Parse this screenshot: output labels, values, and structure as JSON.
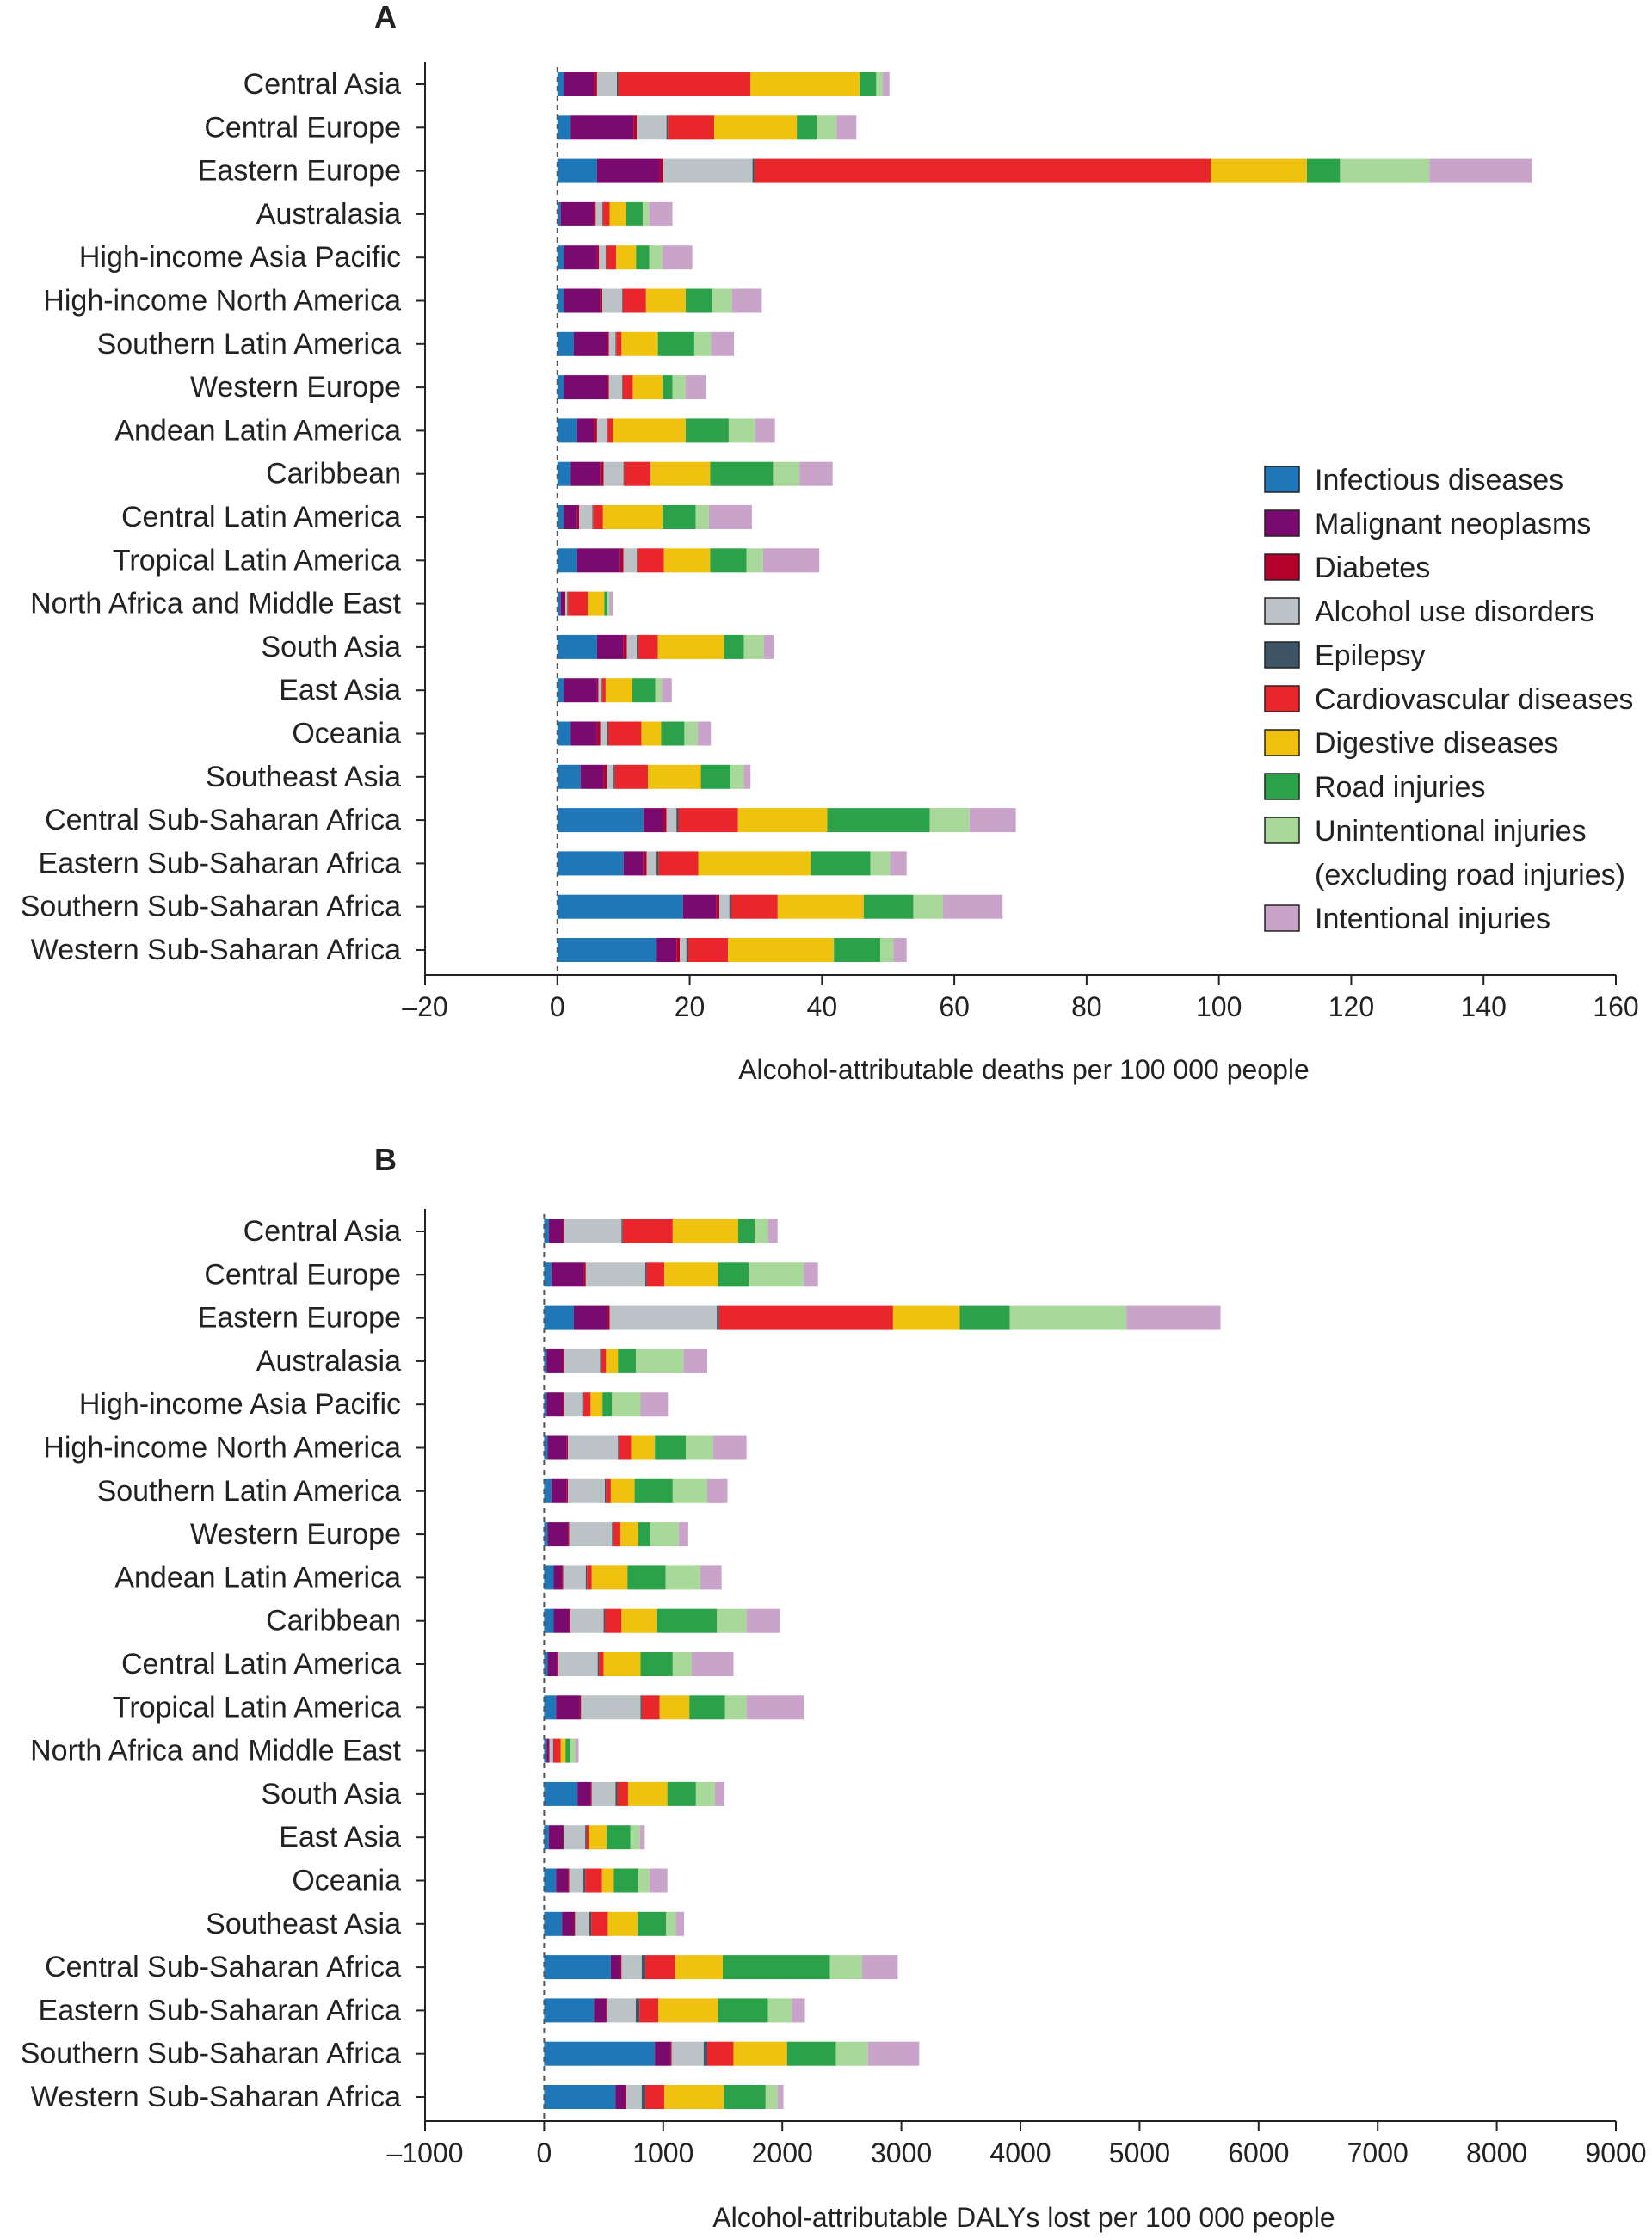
{
  "categories_legend": [
    {
      "key": "inf",
      "label": "Infectious diseases",
      "color": "#1f77b8"
    },
    {
      "key": "mal",
      "label": "Malignant neoplasms",
      "color": "#7b0a6e"
    },
    {
      "key": "dia",
      "label": "Diabetes",
      "color": "#b3002d"
    },
    {
      "key": "aud",
      "label": "Alcohol use disorders",
      "color": "#bcc3c7"
    },
    {
      "key": "epi",
      "label": "Epilepsy",
      "color": "#3d5566"
    },
    {
      "key": "cvd",
      "label": "Cardiovascular diseases",
      "color": "#e8262b"
    },
    {
      "key": "dig",
      "label": "Digestive diseases",
      "color": "#efc20f"
    },
    {
      "key": "road",
      "label": "Road injuries",
      "color": "#2ba24a"
    },
    {
      "key": "unint",
      "label": "Unintentional injuries",
      "label2": "(excluding road injuries)",
      "color": "#a8d89a"
    },
    {
      "key": "intent",
      "label": "Intentional injuries",
      "color": "#c9a3c9"
    }
  ],
  "chart_data": [
    {
      "panel_label": "A",
      "type": "bar",
      "orientation": "horizontal",
      "stacked": true,
      "xlabel": "Alcohol-attributable deaths per 100 000 people",
      "xlim": [
        -20,
        160
      ],
      "xticks": [
        -20,
        0,
        20,
        40,
        60,
        80,
        100,
        120,
        140,
        160
      ],
      "xtick_labels": [
        "–20",
        "0",
        "20",
        "40",
        "60",
        "80",
        "100",
        "120",
        "140",
        "160"
      ],
      "grid": false,
      "legend_position": "right",
      "categories": [
        "Central Asia",
        "Central Europe",
        "Eastern Europe",
        "Australasia",
        "High-income Asia Pacific",
        "High-income North America",
        "Southern Latin America",
        "Western Europe",
        "Andean Latin America",
        "Caribbean",
        "Central Latin America",
        "Tropical Latin America",
        "North Africa and Middle East",
        "South Asia",
        "East Asia",
        "Oceania",
        "Southeast Asia",
        "Central Sub-Saharan Africa",
        "Eastern Sub-Saharan Africa",
        "Southern Sub-Saharan Africa",
        "Western Sub-Saharan Africa"
      ],
      "series": [
        {
          "name": "Infectious diseases",
          "values": [
            1,
            2,
            6,
            0.5,
            1,
            1,
            2.5,
            1,
            3,
            2,
            1,
            3,
            0.5,
            6,
            1,
            2,
            3.5,
            13,
            10,
            19,
            15
          ]
        },
        {
          "name": "Malignant neoplasms",
          "values": [
            4.5,
            9.5,
            9.5,
            5,
            5,
            5.5,
            5,
            6.5,
            2.5,
            4.5,
            2,
            6.5,
            0.5,
            4,
            5,
            4,
            3.5,
            3,
            3,
            5,
            3
          ]
        },
        {
          "name": "Diabetes",
          "values": [
            0.5,
            0.5,
            0.5,
            0.3,
            0.3,
            0.3,
            0.3,
            0.3,
            0.5,
            0.5,
            0.3,
            0.5,
            0.2,
            0.5,
            0.2,
            0.5,
            0.5,
            0.5,
            0.5,
            0.5,
            0.5
          ]
        },
        {
          "name": "Alcohol use disorders",
          "values": [
            3,
            4.5,
            13.5,
            1,
            1,
            3,
            1,
            2,
            1.5,
            3,
            2,
            2,
            0.3,
            1.5,
            0.5,
            1,
            1,
            1.5,
            1.5,
            1.5,
            1
          ]
        },
        {
          "name": "Epilepsy",
          "values": [
            0.2,
            0.2,
            0.3,
            0.1,
            0.1,
            0.1,
            0.1,
            0.1,
            0.1,
            0.1,
            0.1,
            0.1,
            0.1,
            0.2,
            0.1,
            0.2,
            0.2,
            0.3,
            0.3,
            0.3,
            0.3
          ]
        },
        {
          "name": "Cardiovascular diseases",
          "values": [
            20,
            7,
            69,
            1,
            1.5,
            3.5,
            0.8,
            1.5,
            0.8,
            4,
            1.5,
            4,
            3,
            3,
            0.5,
            5,
            5,
            9,
            6,
            7,
            6
          ]
        },
        {
          "name": "Digestive diseases",
          "values": [
            16.5,
            12.5,
            14.5,
            2.5,
            3,
            6,
            5.5,
            4.5,
            11,
            9,
            9,
            7,
            2.5,
            10,
            4,
            3,
            8,
            13.5,
            17,
            13,
            16
          ]
        },
        {
          "name": "Road injuries",
          "values": [
            2.5,
            3,
            5,
            2.5,
            2,
            4,
            5.5,
            1.5,
            6.5,
            9.5,
            5,
            5.5,
            0.5,
            3,
            3.5,
            3.5,
            4.5,
            15.5,
            9,
            7.5,
            7
          ]
        },
        {
          "name": "Unintentional injuries (excluding road injuries)",
          "values": [
            1,
            3,
            13.5,
            1,
            2,
            3,
            2.5,
            2,
            4,
            4,
            2,
            2.5,
            0.3,
            3,
            1,
            2,
            2,
            6,
            3,
            4.5,
            2
          ]
        },
        {
          "name": "Intentional injuries",
          "values": [
            1,
            3,
            15.5,
            3.5,
            4.5,
            4.5,
            3.5,
            3,
            3,
            5,
            6.5,
            8.5,
            0.5,
            1.5,
            1.5,
            2,
            1,
            7,
            2.5,
            9,
            2
          ]
        }
      ]
    },
    {
      "panel_label": "B",
      "type": "bar",
      "orientation": "horizontal",
      "stacked": true,
      "xlabel": "Alcohol-attributable DALYs lost per 100 000 people",
      "xlim": [
        -1000,
        9000
      ],
      "xticks": [
        -1000,
        0,
        1000,
        2000,
        3000,
        4000,
        5000,
        6000,
        7000,
        8000,
        9000
      ],
      "xtick_labels": [
        "–1000",
        "0",
        "1000",
        "2000",
        "3000",
        "4000",
        "5000",
        "6000",
        "7000",
        "8000",
        "9000"
      ],
      "grid": false,
      "categories": [
        "Central Asia",
        "Central Europe",
        "Eastern Europe",
        "Australasia",
        "High-income Asia Pacific",
        "High-income North America",
        "Southern Latin America",
        "Western Europe",
        "Andean Latin America",
        "Caribbean",
        "Central Latin America",
        "Tropical Latin America",
        "North Africa and Middle East",
        "South Asia",
        "East Asia",
        "Oceania",
        "Southeast Asia",
        "Central Sub-Saharan Africa",
        "Eastern Sub-Saharan Africa",
        "Southern Sub-Saharan Africa",
        "Western Sub-Saharan Africa"
      ],
      "series": [
        {
          "name": "Infectious diseases",
          "values": [
            40,
            60,
            250,
            20,
            20,
            30,
            60,
            30,
            80,
            80,
            30,
            100,
            20,
            280,
            40,
            100,
            150,
            560,
            420,
            930,
            600
          ]
        },
        {
          "name": "Malignant neoplasms",
          "values": [
            120,
            270,
            280,
            140,
            140,
            160,
            130,
            170,
            70,
            130,
            80,
            200,
            20,
            110,
            120,
            100,
            100,
            80,
            100,
            130,
            80
          ]
        },
        {
          "name": "Diabetes",
          "values": [
            10,
            20,
            20,
            10,
            10,
            10,
            10,
            10,
            10,
            10,
            10,
            10,
            5,
            10,
            5,
            10,
            10,
            10,
            10,
            10,
            10
          ]
        },
        {
          "name": "Alcohol use disorders",
          "values": [
            480,
            500,
            900,
            300,
            150,
            420,
            310,
            360,
            190,
            280,
            330,
            500,
            30,
            200,
            180,
            120,
            120,
            170,
            240,
            270,
            130
          ]
        },
        {
          "name": "Epilepsy",
          "values": [
            10,
            10,
            20,
            10,
            10,
            10,
            10,
            10,
            10,
            10,
            10,
            10,
            5,
            15,
            10,
            15,
            15,
            30,
            30,
            30,
            30
          ]
        },
        {
          "name": "Cardiovascular diseases",
          "values": [
            420,
            150,
            1460,
            40,
            60,
            100,
            40,
            60,
            40,
            140,
            40,
            150,
            60,
            90,
            20,
            140,
            140,
            250,
            160,
            220,
            160
          ]
        },
        {
          "name": "Digestive diseases",
          "values": [
            550,
            450,
            560,
            100,
            100,
            200,
            200,
            150,
            300,
            300,
            310,
            250,
            40,
            330,
            150,
            100,
            250,
            400,
            500,
            450,
            500
          ]
        },
        {
          "name": "Road injuries",
          "values": [
            140,
            260,
            420,
            150,
            80,
            260,
            320,
            100,
            320,
            500,
            270,
            300,
            40,
            240,
            200,
            200,
            240,
            900,
            420,
            410,
            350
          ]
        },
        {
          "name": "Unintentional injuries (excluding road injuries)",
          "values": [
            110,
            460,
            980,
            400,
            240,
            230,
            290,
            240,
            290,
            250,
            160,
            180,
            40,
            160,
            80,
            100,
            80,
            270,
            200,
            270,
            100
          ]
        },
        {
          "name": "Intentional injuries",
          "values": [
            80,
            120,
            790,
            200,
            230,
            280,
            170,
            80,
            180,
            280,
            350,
            480,
            30,
            80,
            40,
            150,
            70,
            300,
            110,
            430,
            50
          ]
        }
      ]
    }
  ]
}
